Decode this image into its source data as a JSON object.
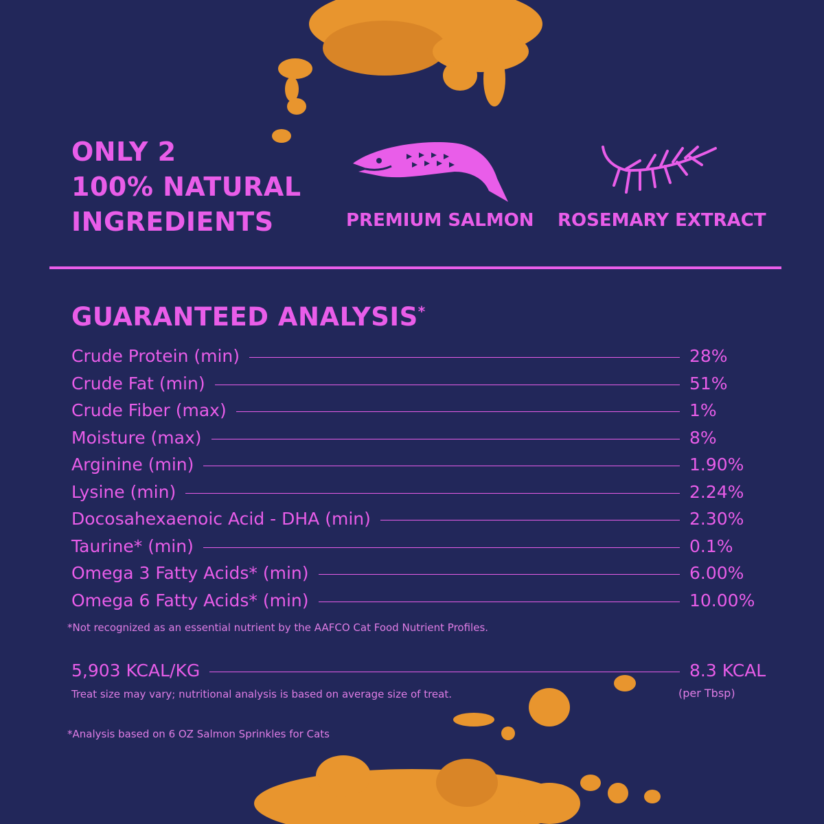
{
  "colors": {
    "background": "#22275a",
    "accent": "#e95de9",
    "crumbs": "#e8952e"
  },
  "hero": {
    "line1": "ONLY 2",
    "line2": "100% NATURAL",
    "line3": "INGREDIENTS"
  },
  "ingredients": [
    {
      "icon": "salmon-fish-icon",
      "label": "PREMIUM SALMON"
    },
    {
      "icon": "rosemary-sprig-icon",
      "label": "ROSEMARY EXTRACT"
    }
  ],
  "analysis": {
    "title": "GUARANTEED ANALYSIS",
    "title_mark": "*",
    "rows": [
      {
        "label": "Crude Protein (min)",
        "value": "28%"
      },
      {
        "label": "Crude Fat (min)",
        "value": "51%"
      },
      {
        "label": "Crude Fiber (max)",
        "value": "1%"
      },
      {
        "label": "Moisture (max)",
        "value": "8%"
      },
      {
        "label": "Arginine (min)",
        "value": "1.90%"
      },
      {
        "label": "Lysine (min)",
        "value": "2.24%"
      },
      {
        "label": "Docosahexaenoic Acid - DHA (min)",
        "value": "2.30%"
      },
      {
        "label": "Taurine* (min)",
        "value": "0.1%"
      },
      {
        "label": "Omega 3 Fatty Acids* (min)",
        "value": "6.00%"
      },
      {
        "label": "Omega 6 Fatty Acids* (min)",
        "value": "10.00%"
      }
    ],
    "footnote": "*Not recognized as an essential nutrient by the AAFCO Cat Food Nutrient Profiles."
  },
  "calories": {
    "per_kg": "5,903 KCAL/KG",
    "per_serving": "8.3 KCAL",
    "per_serving_unit": "(per Tbsp)",
    "note": "Treat size may vary; nutritional analysis is based on average size of treat."
  },
  "basis_note": "*Analysis based on 6 OZ Salmon Sprinkles for Cats"
}
